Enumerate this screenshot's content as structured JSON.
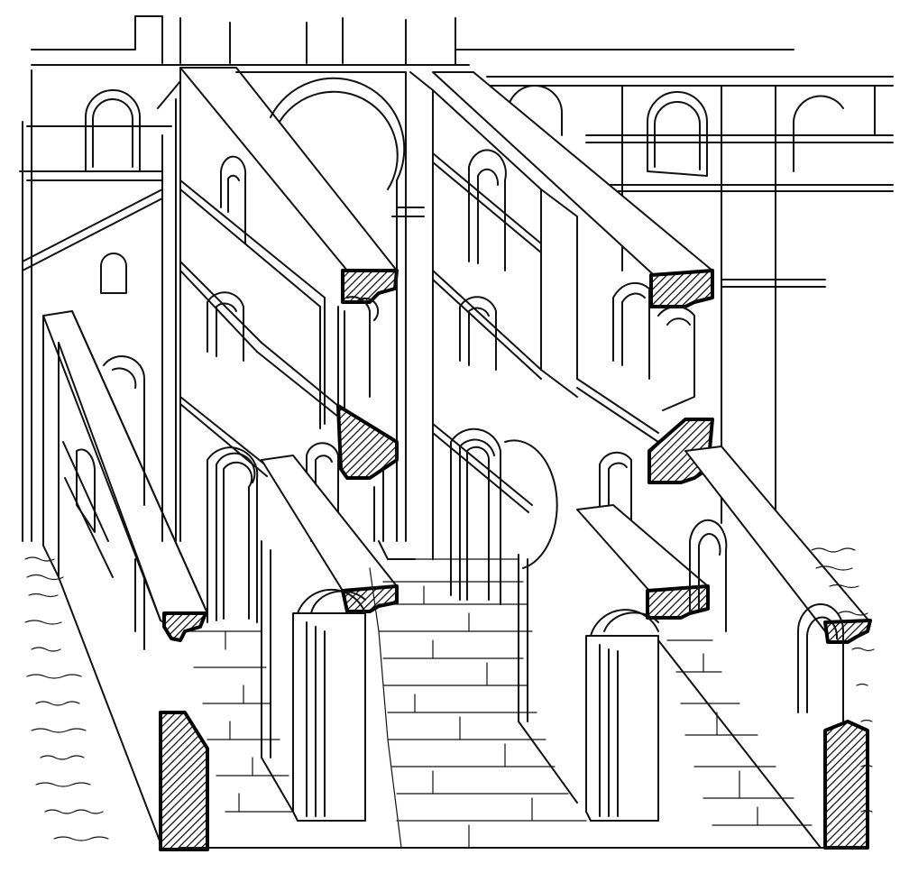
{
  "figure": {
    "subject": "engraving-architecture",
    "style": "line-engraving",
    "colors": {
      "ink": "#111111",
      "paper": "#ffffff"
    }
  }
}
